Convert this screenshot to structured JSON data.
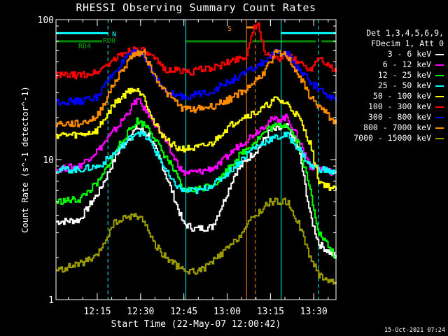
{
  "chart_data": {
    "type": "line",
    "title": "RHESSI Observing Summary Count Rates",
    "xlabel": "Start Time (22-May-07 12:00:42)",
    "ylabel": "Count Rate (s^-1 detector^-1)",
    "yscale": "log",
    "ylim": [
      1,
      100
    ],
    "xlim_minutes": [
      0,
      97
    ],
    "yticks": [
      {
        "v": 1,
        "label": "1"
      },
      {
        "v": 10,
        "label": "10"
      },
      {
        "v": 100,
        "label": "100"
      }
    ],
    "xticks": [
      {
        "t": 14.3,
        "label": "12:15"
      },
      {
        "t": 29.3,
        "label": "12:30"
      },
      {
        "t": 44.3,
        "label": "12:45"
      },
      {
        "t": 59.3,
        "label": "13:00"
      },
      {
        "t": 74.3,
        "label": "13:15"
      },
      {
        "t": 89.3,
        "label": "13:30"
      }
    ],
    "legend_header": [
      "Det 1,3,4,5,6,9,",
      "FDecim 1, Att 0"
    ],
    "legend_placement": "right",
    "grid": false,
    "series": [
      {
        "name": "3 - 6 keV",
        "color": "#ffffff",
        "values": [
          [
            0,
            3.6
          ],
          [
            8,
            3.7
          ],
          [
            15,
            6
          ],
          [
            22,
            12
          ],
          [
            28,
            17
          ],
          [
            32,
            15
          ],
          [
            36,
            10
          ],
          [
            40,
            6
          ],
          [
            44,
            3.5
          ],
          [
            48,
            3.2
          ],
          [
            54,
            3.3
          ],
          [
            58,
            5
          ],
          [
            62,
            8
          ],
          [
            66,
            10
          ],
          [
            70,
            12
          ],
          [
            74,
            16
          ],
          [
            80,
            17
          ],
          [
            84,
            12
          ],
          [
            88,
            4
          ],
          [
            91,
            2.5
          ],
          [
            97,
            2
          ]
        ]
      },
      {
        "name": "6 - 12 keV",
        "color": "#ff00ff",
        "values": [
          [
            0,
            8.5
          ],
          [
            8,
            9
          ],
          [
            15,
            12
          ],
          [
            22,
            18
          ],
          [
            28,
            27
          ],
          [
            32,
            21
          ],
          [
            36,
            16
          ],
          [
            40,
            11
          ],
          [
            44,
            8
          ],
          [
            50,
            8.2
          ],
          [
            56,
            9
          ],
          [
            62,
            12
          ],
          [
            68,
            15
          ],
          [
            74,
            19
          ],
          [
            80,
            20
          ],
          [
            84,
            14
          ],
          [
            88,
            9
          ],
          [
            97,
            8
          ]
        ]
      },
      {
        "name": "12 - 25 keV",
        "color": "#00ff00",
        "values": [
          [
            0,
            5
          ],
          [
            8,
            5.2
          ],
          [
            15,
            7
          ],
          [
            22,
            13
          ],
          [
            28,
            19
          ],
          [
            32,
            17
          ],
          [
            36,
            12
          ],
          [
            40,
            9
          ],
          [
            44,
            6
          ],
          [
            50,
            6.2
          ],
          [
            56,
            7
          ],
          [
            62,
            10
          ],
          [
            68,
            13
          ],
          [
            74,
            17
          ],
          [
            80,
            18
          ],
          [
            84,
            13
          ],
          [
            88,
            6
          ],
          [
            91,
            3
          ],
          [
            97,
            2
          ]
        ]
      },
      {
        "name": "25 - 50 keV",
        "color": "#00ffff",
        "values": [
          [
            0,
            8.5
          ],
          [
            8,
            8.5
          ],
          [
            15,
            9
          ],
          [
            22,
            12
          ],
          [
            28,
            16
          ],
          [
            32,
            14
          ],
          [
            36,
            10
          ],
          [
            40,
            7
          ],
          [
            44,
            6
          ],
          [
            50,
            6
          ],
          [
            56,
            7
          ],
          [
            62,
            9
          ],
          [
            68,
            12
          ],
          [
            74,
            14
          ],
          [
            80,
            15
          ],
          [
            84,
            12
          ],
          [
            88,
            9
          ],
          [
            97,
            8
          ]
        ]
      },
      {
        "name": "50 - 100 keV",
        "color": "#ffff00",
        "values": [
          [
            0,
            15
          ],
          [
            8,
            15
          ],
          [
            14,
            16
          ],
          [
            20,
            25
          ],
          [
            26,
            32
          ],
          [
            30,
            30
          ],
          [
            34,
            18
          ],
          [
            38,
            14
          ],
          [
            42,
            12
          ],
          [
            48,
            12
          ],
          [
            54,
            13
          ],
          [
            58,
            16
          ],
          [
            64,
            20
          ],
          [
            70,
            22
          ],
          [
            76,
            27
          ],
          [
            80,
            25
          ],
          [
            84,
            20
          ],
          [
            88,
            13
          ],
          [
            91,
            7
          ],
          [
            97,
            6
          ]
        ]
      },
      {
        "name": "100 - 300 keV",
        "color": "#ff0000",
        "values": [
          [
            0,
            40
          ],
          [
            8,
            40
          ],
          [
            14,
            42
          ],
          [
            20,
            52
          ],
          [
            26,
            62
          ],
          [
            30,
            60
          ],
          [
            34,
            52
          ],
          [
            38,
            44
          ],
          [
            44,
            43
          ],
          [
            46,
            42
          ],
          [
            50,
            44
          ],
          [
            56,
            46
          ],
          [
            62,
            52
          ],
          [
            66,
            55
          ],
          [
            68,
            85
          ],
          [
            70,
            90
          ],
          [
            72,
            60
          ],
          [
            76,
            52
          ],
          [
            80,
            55
          ],
          [
            84,
            50
          ],
          [
            88,
            44
          ],
          [
            91,
            55
          ],
          [
            94,
            48
          ],
          [
            97,
            42
          ]
        ]
      },
      {
        "name": "300 - 800 keV",
        "color": "#0000ff",
        "values": [
          [
            0,
            26
          ],
          [
            8,
            26
          ],
          [
            14,
            28
          ],
          [
            20,
            42
          ],
          [
            26,
            58
          ],
          [
            30,
            56
          ],
          [
            34,
            40
          ],
          [
            38,
            30
          ],
          [
            44,
            28
          ],
          [
            48,
            29
          ],
          [
            54,
            31
          ],
          [
            60,
            36
          ],
          [
            66,
            42
          ],
          [
            72,
            50
          ],
          [
            76,
            58
          ],
          [
            80,
            57
          ],
          [
            84,
            44
          ],
          [
            88,
            36
          ],
          [
            91,
            32
          ],
          [
            97,
            26
          ]
        ]
      },
      {
        "name": "800 - 7000 keV",
        "color": "#ff8c00",
        "values": [
          [
            0,
            18
          ],
          [
            8,
            18
          ],
          [
            14,
            20
          ],
          [
            20,
            35
          ],
          [
            26,
            55
          ],
          [
            30,
            60
          ],
          [
            34,
            40
          ],
          [
            38,
            30
          ],
          [
            44,
            23
          ],
          [
            48,
            23
          ],
          [
            54,
            24
          ],
          [
            60,
            27
          ],
          [
            66,
            32
          ],
          [
            72,
            42
          ],
          [
            76,
            58
          ],
          [
            80,
            55
          ],
          [
            84,
            40
          ],
          [
            88,
            28
          ],
          [
            91,
            24
          ],
          [
            97,
            18
          ]
        ]
      },
      {
        "name": "7000 - 15000 keV",
        "color": "#9b9b00",
        "values": [
          [
            0,
            1.6
          ],
          [
            8,
            1.8
          ],
          [
            14,
            2
          ],
          [
            20,
            3.5
          ],
          [
            26,
            4
          ],
          [
            30,
            3.8
          ],
          [
            34,
            2.5
          ],
          [
            38,
            2
          ],
          [
            44,
            1.6
          ],
          [
            50,
            1.6
          ],
          [
            56,
            2
          ],
          [
            62,
            2.6
          ],
          [
            68,
            3.8
          ],
          [
            74,
            5
          ],
          [
            80,
            5
          ],
          [
            84,
            3.5
          ],
          [
            88,
            2
          ],
          [
            91,
            1.5
          ],
          [
            97,
            1.3
          ]
        ]
      }
    ],
    "annotations": [
      {
        "text": "N",
        "color": "#00ffff",
        "value": 80
      },
      {
        "text": "RD0",
        "color": "#00aa00",
        "value": 70
      },
      {
        "text": "RD4",
        "color": "#00aa00",
        "value": 62
      },
      {
        "text": "S",
        "color": "#ff8c00",
        "value": 88
      }
    ],
    "flag_bars": [
      {
        "label": "N",
        "color": "#00ffff",
        "level": 80,
        "spans": [
          [
            0,
            18
          ],
          [
            78,
            97
          ]
        ]
      },
      {
        "label": "RD0/RD4",
        "color": "#008800",
        "level": 70,
        "spans": [
          [
            0,
            16
          ],
          [
            45,
            66
          ],
          [
            68,
            90
          ],
          [
            92,
            97
          ]
        ]
      },
      {
        "label": "S",
        "color": "#ff8c00",
        "level": 88,
        "spans": [
          [
            66,
            69
          ]
        ]
      }
    ],
    "vlines": [
      {
        "t": 18,
        "color": "#00ffff",
        "dashed": true
      },
      {
        "t": 45,
        "color": "#00ffff",
        "dashed": false
      },
      {
        "t": 66,
        "color": "#ff8c00",
        "dashed": false
      },
      {
        "t": 69,
        "color": "#ff8c00",
        "dashed": true
      },
      {
        "t": 78,
        "color": "#00ffff",
        "dashed": false
      },
      {
        "t": 91,
        "color": "#00ffff",
        "dashed": true
      },
      {
        "t": 97,
        "color": "#00ffff",
        "dashed": true
      }
    ]
  },
  "footer_stamp": "15-Oct-2021 07:24"
}
